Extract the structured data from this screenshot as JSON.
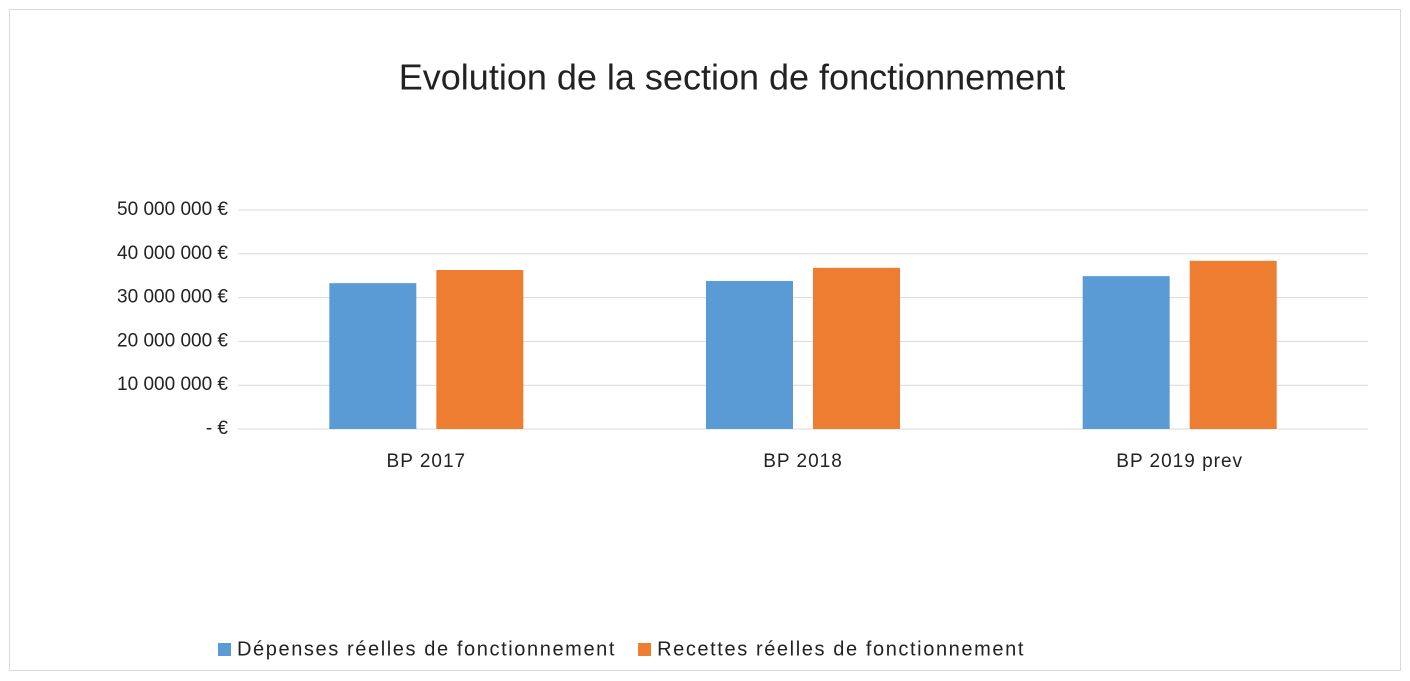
{
  "chart_data": {
    "type": "bar",
    "title": "Evolution de la section de fonctionnement",
    "categories": [
      "BP 2017",
      "BP 2018",
      "BP 2019 prev"
    ],
    "series": [
      {
        "name": "Dépenses réelles de fonctionnement",
        "color": "#5b9bd5",
        "values": [
          33300000,
          33800000,
          34900000
        ]
      },
      {
        "name": "Recettes réelles de fonctionnement",
        "color": "#ed7d31",
        "values": [
          36300000,
          36800000,
          38400000
        ]
      }
    ],
    "ylim": [
      0,
      50000000
    ],
    "yticks": [
      {
        "value": 0,
        "label": "- €"
      },
      {
        "value": 10000000,
        "label": "10 000 000 €"
      },
      {
        "value": 20000000,
        "label": "20 000 000 €"
      },
      {
        "value": 30000000,
        "label": "30 000 000 €"
      },
      {
        "value": 40000000,
        "label": "40 000 000 €"
      },
      {
        "value": 50000000,
        "label": "50 000 000 €"
      }
    ],
    "grid": true,
    "legend": "bottom"
  }
}
